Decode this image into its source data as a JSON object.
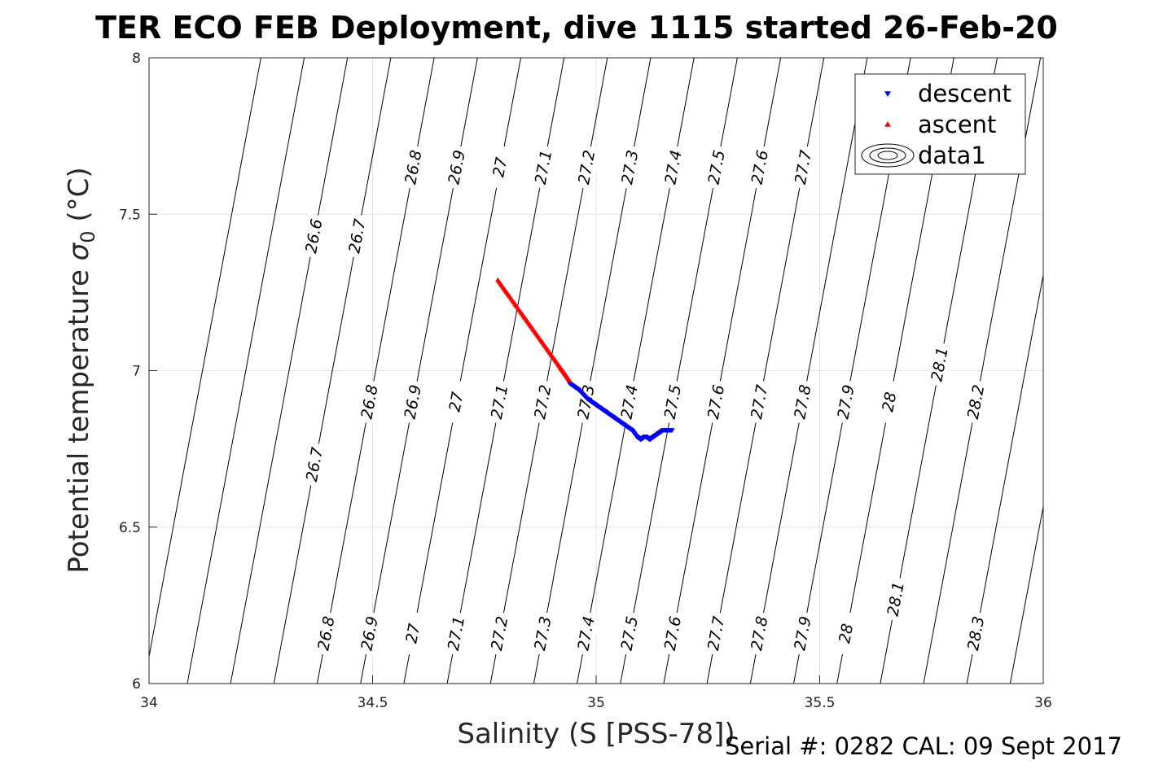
{
  "chart_data": {
    "type": "scatter",
    "title": "TER ECO FEB Deployment, dive 1115 started 26-Feb-20",
    "xlabel": "Salinity (S [PSS-78])",
    "ylabel_main": "Potential temperature ",
    "ylabel_sigma": "σ",
    "ylabel_sub": "0",
    "ylabel_unit": " (°C)",
    "xlim": [
      34,
      36
    ],
    "ylim": [
      6,
      8
    ],
    "x_ticks": [
      "34",
      "34.5",
      "35",
      "35.5",
      "36"
    ],
    "y_ticks": [
      "6",
      "6.5",
      "7",
      "7.5",
      "8"
    ],
    "grid": true,
    "legend_position": "top-right",
    "legend": [
      {
        "label": "descent",
        "marker": "triangle-down",
        "color": "#0000ff"
      },
      {
        "label": "ascent",
        "marker": "triangle-up",
        "color": "#ff0000"
      },
      {
        "label": "data1",
        "marker": "contour",
        "color": "#000000"
      }
    ],
    "series": [
      {
        "name": "descent",
        "color": "#0000ff",
        "x": [
          34.94,
          34.96,
          34.98,
          35.0,
          35.02,
          35.04,
          35.06,
          35.08,
          35.09,
          35.1,
          35.11,
          35.12,
          35.13,
          35.14,
          35.15,
          35.16,
          35.17
        ],
        "y": [
          6.96,
          6.94,
          6.91,
          6.89,
          6.87,
          6.85,
          6.83,
          6.81,
          6.79,
          6.78,
          6.79,
          6.78,
          6.79,
          6.8,
          6.81,
          6.81,
          6.81
        ]
      },
      {
        "name": "ascent",
        "color": "#ff0000",
        "x": [
          34.78,
          34.8,
          34.82,
          34.84,
          34.86,
          34.88,
          34.9,
          34.92,
          34.93,
          34.94
        ],
        "y": [
          7.29,
          7.25,
          7.21,
          7.17,
          7.13,
          7.09,
          7.05,
          7.01,
          6.99,
          6.97
        ]
      }
    ],
    "contours": {
      "levels": [
        "26.6",
        "26.7",
        "26.8",
        "26.9",
        "27",
        "27.1",
        "27.2",
        "27.3",
        "27.4",
        "27.5",
        "27.6",
        "27.7",
        "27.8",
        "27.9",
        "28",
        "28.1",
        "28.2",
        "28.3"
      ],
      "label_rows": [
        {
          "y": 7.65,
          "levels": [
            "26.8",
            "26.9",
            "27",
            "27.1",
            "27.2",
            "27.3",
            "27.4",
            "27.5",
            "27.6",
            "27.7"
          ]
        },
        {
          "y": 7.43,
          "levels": [
            "26.6",
            "26.7"
          ]
        },
        {
          "y": 6.9,
          "levels": [
            "26.8",
            "26.9",
            "27",
            "27.1",
            "27.2",
            "27.3",
            "27.4",
            "27.5",
            "27.6",
            "27.7",
            "27.8",
            "27.9",
            "28",
            "28.2"
          ]
        },
        {
          "y": 7.02,
          "levels": [
            "28.1"
          ]
        },
        {
          "y": 6.7,
          "levels": [
            "26.7"
          ]
        },
        {
          "y": 6.16,
          "levels": [
            "26.8",
            "26.9",
            "27",
            "27.1",
            "27.2",
            "27.3",
            "27.4",
            "27.5",
            "27.6",
            "27.7",
            "27.8",
            "27.9",
            "28",
            "28.3"
          ]
        },
        {
          "y": 6.27,
          "levels": [
            "28.1"
          ]
        }
      ]
    },
    "footer": "Serial #: 0282  CAL: 09 Sept 2017"
  }
}
